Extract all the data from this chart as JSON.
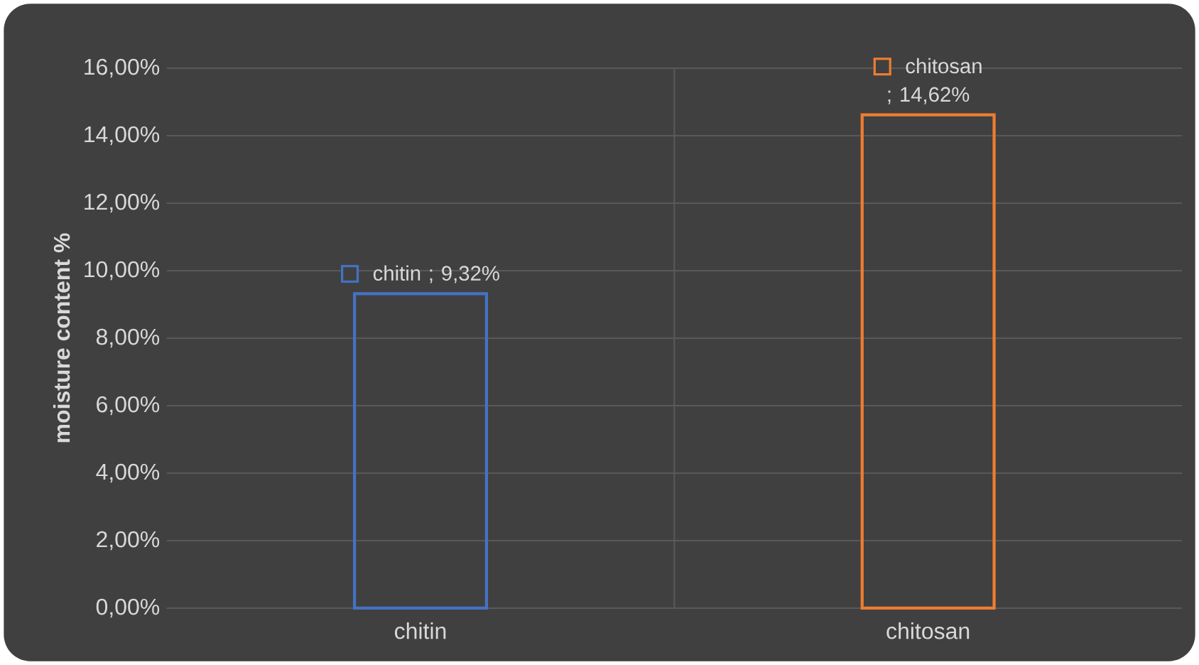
{
  "chart_data": {
    "type": "bar",
    "ylabel": "moisture content %",
    "categories": [
      "chitin",
      "chitosan"
    ],
    "values": [
      9.32,
      14.62
    ],
    "colors": [
      "#4472c4",
      "#ed7d31"
    ],
    "value_labels": [
      "chitin ; 9,32%",
      "chitosan ; 14,62%"
    ],
    "ylim": [
      0,
      16
    ],
    "yticks": [
      {
        "value": 0,
        "label": "0,00%"
      },
      {
        "value": 2,
        "label": "2,00%"
      },
      {
        "value": 4,
        "label": "4,00%"
      },
      {
        "value": 6,
        "label": "6,00%"
      },
      {
        "value": 8,
        "label": "8,00%"
      },
      {
        "value": 10,
        "label": "10,00%"
      },
      {
        "value": 12,
        "label": "12,00%"
      },
      {
        "value": 14,
        "label": "14,00%"
      },
      {
        "value": 16,
        "label": "16,00%"
      }
    ],
    "grid": true
  }
}
